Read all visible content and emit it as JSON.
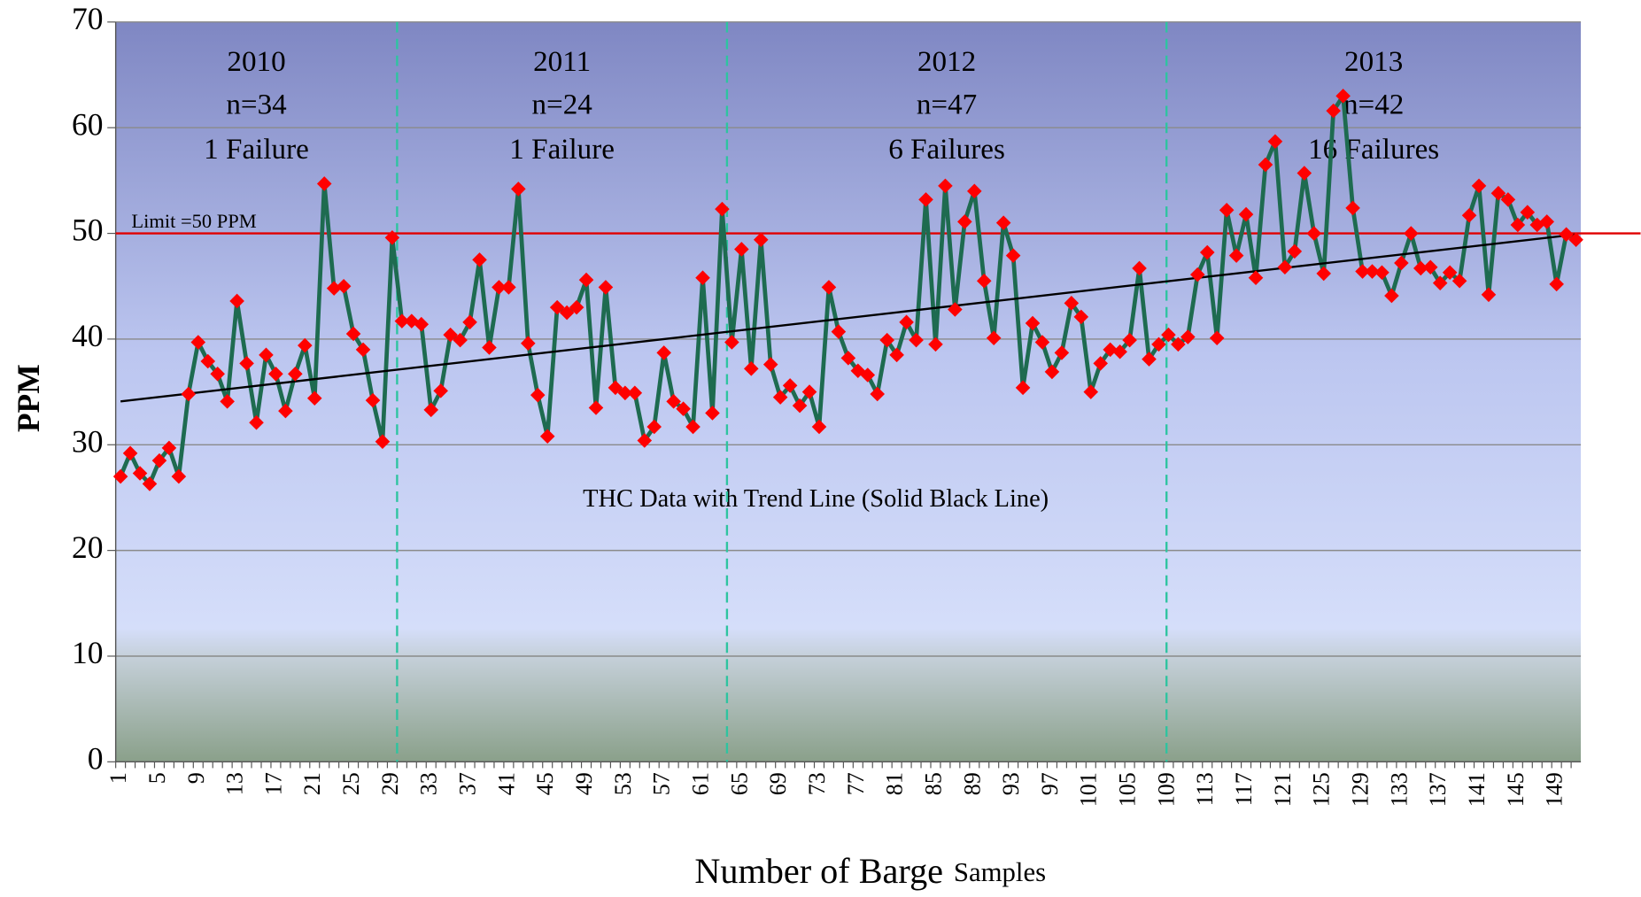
{
  "chart_data": {
    "type": "line",
    "y_label": "PPM",
    "x_label": "Number of Barge",
    "x_label_small": "Samples",
    "annotation": "THC Data with Trend Line (Solid Black Line)",
    "limit": {
      "value": 50,
      "label": "Limit =50 PPM",
      "color": "#e00000"
    },
    "trend_line": {
      "start": 34.1,
      "end": 49.9,
      "color": "#000000"
    },
    "dividers": [
      29.5,
      63.5,
      108.8
    ],
    "divider_color": "#2ec4a0",
    "periods": [
      {
        "year": "2010",
        "n": "n=34",
        "failures": "1 Failure"
      },
      {
        "year": "2011",
        "n": "n=24",
        "failures": "1 Failure"
      },
      {
        "year": "2012",
        "n": "n=47",
        "failures": "6 Failures"
      },
      {
        "year": "2013",
        "n": "n=42",
        "failures": "16 Failures"
      }
    ],
    "categories": [
      "1",
      null,
      null,
      null,
      "5",
      null,
      null,
      null,
      "9",
      null,
      null,
      null,
      "13",
      null,
      null,
      null,
      "17",
      null,
      null,
      null,
      "21",
      null,
      null,
      null,
      "25",
      null,
      null,
      null,
      "29",
      null,
      null,
      null,
      "33",
      null,
      null,
      null,
      "37",
      null,
      null,
      null,
      "41",
      null,
      null,
      null,
      "45",
      null,
      null,
      null,
      "49",
      null,
      null,
      null,
      "53",
      null,
      null,
      null,
      "57",
      null,
      null,
      null,
      "61",
      null,
      null,
      null,
      "65",
      null,
      null,
      null,
      "69",
      null,
      null,
      null,
      "73",
      null,
      null,
      null,
      "77",
      null,
      null,
      null,
      "81",
      null,
      null,
      null,
      "85",
      null,
      null,
      null,
      "89",
      null,
      null,
      null,
      "93",
      null,
      null,
      null,
      "97",
      null,
      null,
      null,
      "101",
      null,
      null,
      null,
      "105",
      null,
      null,
      null,
      "109",
      null,
      null,
      null,
      "113",
      null,
      null,
      null,
      "117",
      null,
      null,
      null,
      "121",
      null,
      null,
      null,
      "125",
      null,
      null,
      null,
      "129",
      null,
      null,
      null,
      "133",
      null,
      null,
      null,
      "137",
      null,
      null,
      null,
      "141",
      null,
      null,
      null,
      "145",
      null,
      null,
      null,
      "149",
      null,
      null
    ],
    "series": [
      {
        "name": "THC",
        "color": "#1e6b50",
        "marker_color": "#ff0000",
        "values": [
          27.0,
          29.2,
          27.3,
          26.3,
          28.5,
          29.7,
          27.0,
          34.8,
          39.7,
          37.9,
          36.7,
          34.1,
          43.6,
          37.7,
          32.1,
          38.5,
          36.7,
          33.2,
          36.7,
          39.4,
          34.4,
          54.7,
          44.8,
          45.0,
          40.5,
          39.0,
          34.2,
          30.3,
          49.6,
          41.7,
          41.7,
          41.4,
          33.3,
          35.1,
          40.4,
          39.9,
          41.6,
          47.5,
          39.2,
          44.9,
          44.9,
          54.2,
          39.6,
          34.7,
          30.8,
          43.0,
          42.5,
          43.0,
          45.6,
          33.5,
          44.9,
          35.4,
          34.9,
          34.9,
          30.4,
          31.7,
          38.7,
          34.1,
          33.4,
          31.7,
          45.8,
          33.0,
          52.3,
          39.7,
          48.5,
          37.2,
          49.4,
          37.6,
          34.5,
          35.6,
          33.7,
          35.0,
          31.7,
          44.9,
          40.7,
          38.2,
          37.0,
          36.6,
          34.8,
          39.9,
          38.5,
          41.6,
          39.9,
          53.2,
          39.5,
          54.5,
          42.8,
          51.1,
          54.0,
          45.5,
          40.1,
          51.0,
          47.9,
          35.4,
          41.5,
          39.7,
          36.9,
          38.7,
          43.4,
          42.1,
          35.0,
          37.7,
          39.0,
          38.8,
          39.9,
          46.7,
          38.1,
          39.5,
          40.4,
          39.5,
          40.2,
          46.1,
          48.2,
          40.1,
          52.2,
          47.9,
          51.8,
          45.8,
          56.5,
          58.7,
          46.8,
          48.3,
          55.7,
          50.0,
          46.2,
          61.6,
          63.0,
          52.4,
          46.4,
          46.4,
          46.3,
          44.1,
          47.2,
          50.0,
          46.7,
          46.8,
          45.3,
          46.3,
          45.5,
          51.7,
          54.5,
          44.2,
          53.8,
          53.2,
          50.8,
          52.0,
          50.8,
          51.1,
          45.2,
          49.9,
          49.4
        ]
      }
    ],
    "ylim": [
      0,
      70
    ],
    "yticks": [
      0,
      10,
      20,
      30,
      40,
      50,
      60,
      70
    ],
    "grid": true
  }
}
